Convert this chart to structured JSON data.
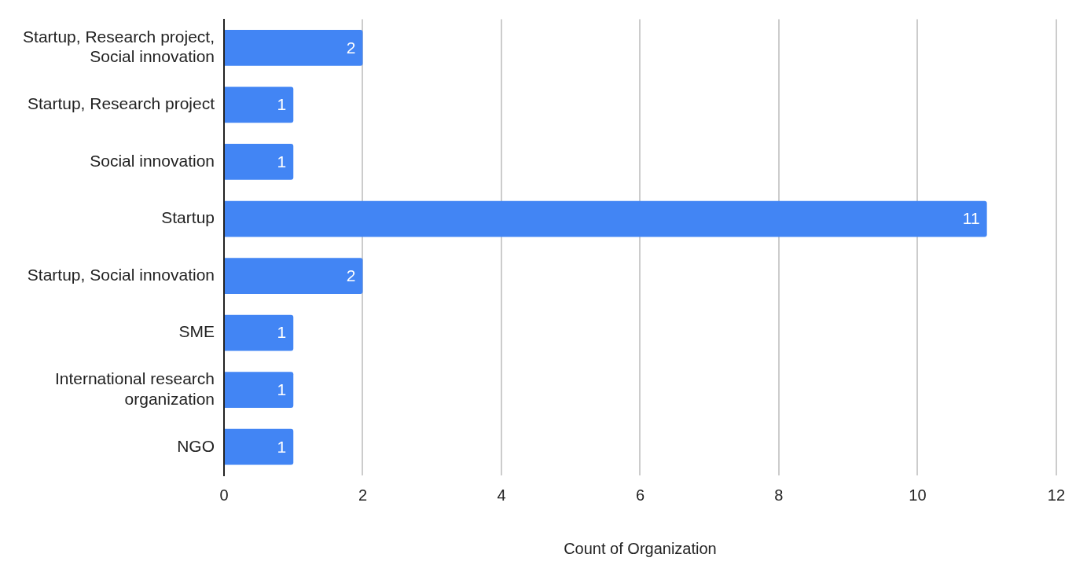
{
  "chart_data": {
    "type": "bar",
    "orientation": "horizontal",
    "xlabel": "Count of Organization",
    "categories": [
      "Startup, Research project, Social innovation",
      "Startup, Research project",
      "Social innovation",
      "Startup",
      "Startup, Social innovation",
      "SME",
      "International research organization",
      "NGO"
    ],
    "values": [
      2,
      1,
      1,
      11,
      2,
      1,
      1,
      1
    ],
    "color": "#4285f4",
    "xlim": [
      0,
      12
    ],
    "xticks": [
      0,
      2,
      4,
      6,
      8,
      10,
      12
    ],
    "grid": "x",
    "data_labels": true,
    "legend": false
  }
}
